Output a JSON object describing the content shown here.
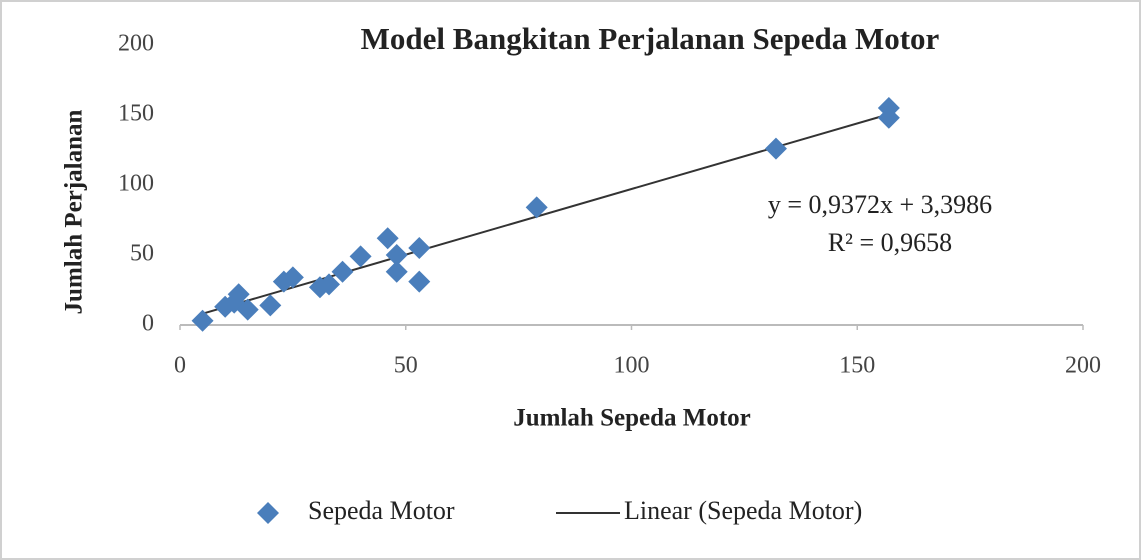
{
  "chart_data": {
    "type": "scatter",
    "title": "Model Bangkitan Perjalanan Sepeda Motor",
    "x_label": "Jumlah Sepeda Motor",
    "y_label": "Jumlah Perjalanan",
    "xlim": [
      0,
      200
    ],
    "ylim": [
      0,
      200
    ],
    "xticks": [
      0,
      50,
      100,
      150,
      200
    ],
    "yticks": [
      0,
      50,
      100,
      150,
      200
    ],
    "grid": false,
    "legend": "bottom",
    "series": [
      {
        "name": "Sepeda Motor",
        "color": "#4a7ebb",
        "x": [
          5,
          10,
          12,
          13,
          15,
          20,
          23,
          25,
          31,
          33,
          36,
          40,
          46,
          48,
          48,
          53,
          53,
          79,
          132,
          157,
          157
        ],
        "values": [
          3,
          13,
          16,
          22,
          11,
          14,
          31,
          34,
          27,
          29,
          38,
          49,
          62,
          50,
          38,
          55,
          31,
          84,
          126,
          155,
          148
        ]
      }
    ],
    "trendline": {
      "name": "Linear (Sepeda Motor)",
      "color": "#333333",
      "slope": 0.9372,
      "intercept": 3.3986,
      "equation": "y = 0,9372x + 3,3986",
      "r2_label": "R² = 0,9658"
    }
  }
}
